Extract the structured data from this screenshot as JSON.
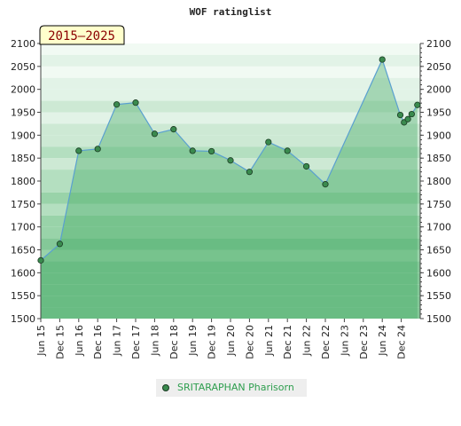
{
  "chart_data": {
    "type": "area",
    "title": "WOF ratinglist",
    "period_label": "2015–2025",
    "ylim": [
      1500,
      2100
    ],
    "yticks": [
      1500,
      1550,
      1600,
      1650,
      1700,
      1750,
      1800,
      1850,
      1900,
      1950,
      2000,
      2050,
      2100
    ],
    "xtick_labels": [
      "Jun 15",
      "Dec 15",
      "Jun 16",
      "Dec 16",
      "Jun 17",
      "Dec 17",
      "Jun 18",
      "Dec 18",
      "Jun 19",
      "Dec 19",
      "Jun 20",
      "Dec 20",
      "Jun 21",
      "Dec 21",
      "Jun 22",
      "Dec 22",
      "Jun 23",
      "Dec 23",
      "Jun 24",
      "Dec 24"
    ],
    "grid": true,
    "legend_position": "bottom",
    "series": [
      {
        "name": "SRITARAPHAN Pharisorn",
        "color": "#5aa0d0",
        "marker_color": "#3a8a4e",
        "x": [
          0,
          1,
          2,
          3,
          4,
          5,
          6,
          7,
          8,
          9,
          10,
          11,
          12,
          13,
          14,
          15,
          18,
          18.95,
          19.15,
          19.35,
          19.55,
          19.85
        ],
        "values": [
          1627,
          1663,
          1866,
          1870,
          1967,
          1971,
          1903,
          1913,
          1866,
          1865,
          1845,
          1820,
          1885,
          1866,
          1832,
          1793,
          2065,
          1944,
          1928,
          1935,
          1946,
          1966
        ]
      }
    ]
  }
}
